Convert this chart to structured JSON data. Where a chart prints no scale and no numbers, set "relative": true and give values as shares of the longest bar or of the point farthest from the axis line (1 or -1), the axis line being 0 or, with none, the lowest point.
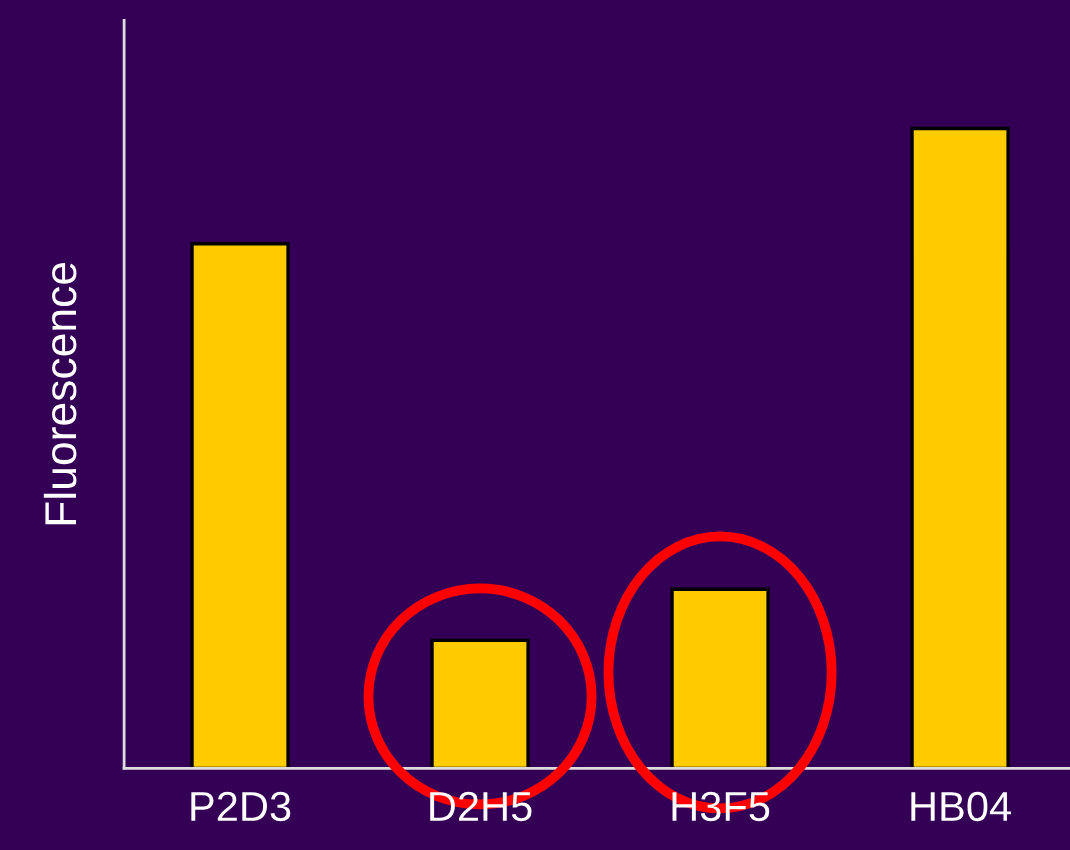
{
  "chart_data": {
    "type": "bar",
    "ylabel": "Fluorescence",
    "relative": true,
    "categories": [
      "P2D3",
      "D2H5",
      "H3F5",
      "HB04"
    ],
    "values": [
      0.82,
      0.2,
      0.28,
      1
    ],
    "color": "#ffcc00",
    "grid": false,
    "legend": false
  }
}
